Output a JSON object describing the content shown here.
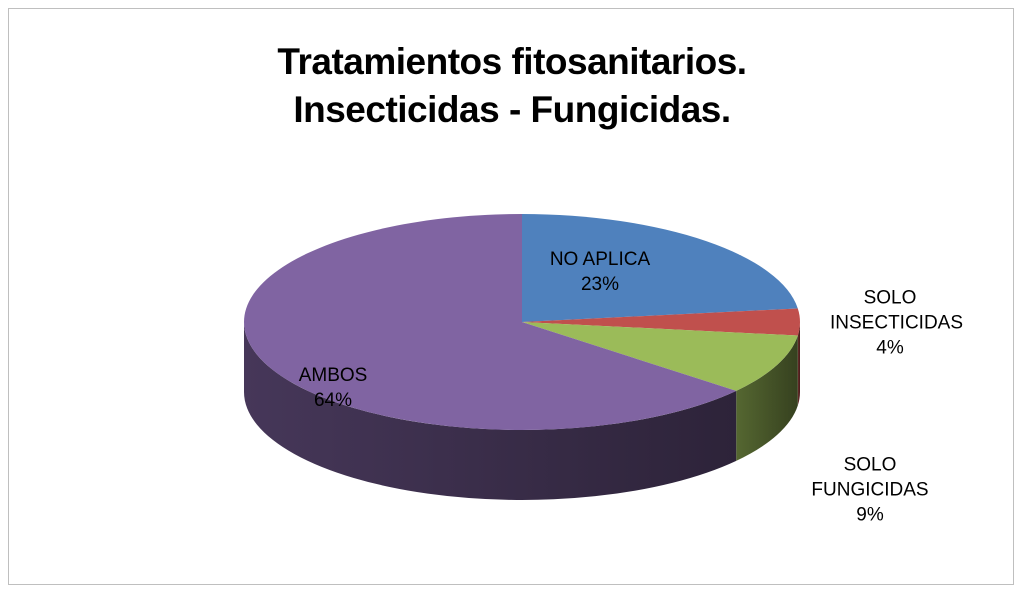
{
  "chart_data": {
    "type": "pie",
    "title": "Tratamientos fitosanitarios. Insecticidas - Fungicidas.",
    "categories": [
      "NO APLICA",
      "SOLO INSECTICIDAS",
      "SOLO FUNGICIDAS",
      "AMBOS"
    ],
    "values": [
      23,
      4,
      9,
      64
    ],
    "value_labels": [
      "23%",
      "4%",
      "9%",
      "64%"
    ],
    "colors": [
      "#4f81bd",
      "#c0504d",
      "#9bbb59",
      "#8064a2"
    ]
  }
}
